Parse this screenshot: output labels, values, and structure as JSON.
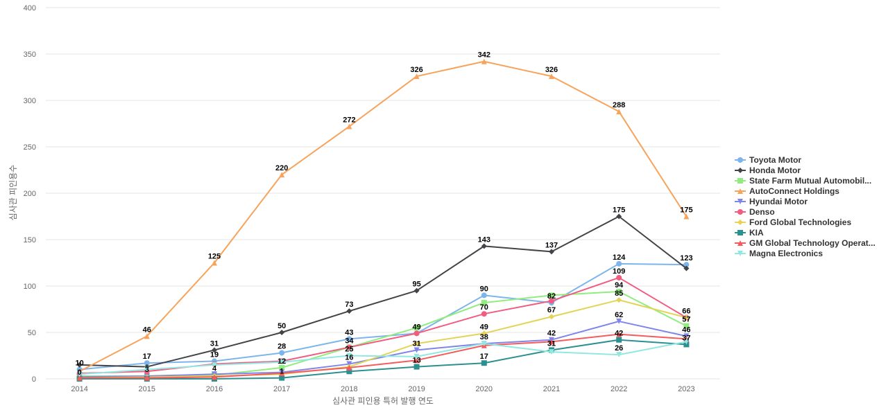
{
  "chart_data": {
    "type": "line",
    "title": "",
    "xlabel": "심사관 피인용 특허 발행 연도",
    "ylabel": "심사관 피인용수",
    "x": [
      "2014",
      "2015",
      "2016",
      "2017",
      "2018",
      "2019",
      "2020",
      "2021",
      "2022",
      "2023"
    ],
    "ylim": [
      0,
      400
    ],
    "yticks": [
      0,
      50,
      100,
      150,
      200,
      250,
      300,
      350,
      400
    ],
    "grid": true,
    "legend_position": "right",
    "series": [
      {
        "name": "Toyota Motor",
        "color": "#7cb5ec",
        "marker": "circle",
        "values": [
          10,
          17,
          19,
          28,
          43,
          49,
          90,
          82,
          124,
          123
        ]
      },
      {
        "name": "Honda Motor",
        "color": "#434348",
        "marker": "diamond",
        "values": [
          15,
          13,
          31,
          50,
          73,
          95,
          143,
          137,
          175,
          119
        ]
      },
      {
        "name": "State Farm Mutual Automobil...",
        "color": "#90ed7d",
        "marker": "square",
        "values": [
          3,
          3,
          4,
          12,
          34,
          55,
          82,
          90,
          94,
          57
        ]
      },
      {
        "name": "AutoConnect Holdings",
        "color": "#f7a35c",
        "marker": "triangle",
        "values": [
          8,
          46,
          125,
          220,
          272,
          326,
          342,
          326,
          288,
          175
        ]
      },
      {
        "name": "Hyundai Motor",
        "color": "#8085e9",
        "marker": "triangle-down",
        "values": [
          2,
          3,
          5,
          7,
          16,
          31,
          38,
          42,
          62,
          46
        ]
      },
      {
        "name": "Denso",
        "color": "#f15c80",
        "marker": "circle",
        "values": [
          6,
          8,
          16,
          19,
          34,
          49,
          70,
          84,
          109,
          66
        ]
      },
      {
        "name": "Ford Global Technologies",
        "color": "#e4d354",
        "marker": "diamond",
        "values": [
          1,
          2,
          3,
          5,
          13,
          38,
          49,
          67,
          85,
          66
        ]
      },
      {
        "name": "KIA",
        "color": "#2b908f",
        "marker": "square",
        "values": [
          0,
          0,
          0,
          1,
          8,
          13,
          17,
          31,
          42,
          37
        ]
      },
      {
        "name": "GM Global Technology Operat...",
        "color": "#f45b5b",
        "marker": "triangle",
        "values": [
          1,
          1,
          2,
          6,
          12,
          20,
          36,
          40,
          48,
          43
        ]
      },
      {
        "name": "Magna Electronics",
        "color": "#91e8e1",
        "marker": "triangle-down",
        "values": [
          5,
          10,
          15,
          18,
          25,
          24,
          38,
          29,
          26,
          40
        ]
      }
    ],
    "data_labels": [
      {
        "x": "2014",
        "text": "10",
        "y": 10
      },
      {
        "x": "2014",
        "text": "0",
        "y": 0
      },
      {
        "x": "2015",
        "text": "46",
        "y": 46
      },
      {
        "x": "2015",
        "text": "17",
        "y": 17
      },
      {
        "x": "2015",
        "text": "3",
        "y": 3
      },
      {
        "x": "2016",
        "text": "125",
        "y": 125
      },
      {
        "x": "2016",
        "text": "31",
        "y": 31
      },
      {
        "x": "2016",
        "text": "19",
        "y": 19
      },
      {
        "x": "2016",
        "text": "4",
        "y": 4
      },
      {
        "x": "2017",
        "text": "220",
        "y": 220
      },
      {
        "x": "2017",
        "text": "50",
        "y": 50
      },
      {
        "x": "2017",
        "text": "28",
        "y": 28
      },
      {
        "x": "2017",
        "text": "12",
        "y": 12
      },
      {
        "x": "2017",
        "text": "1",
        "y": 1
      },
      {
        "x": "2018",
        "text": "272",
        "y": 272
      },
      {
        "x": "2018",
        "text": "73",
        "y": 73
      },
      {
        "x": "2018",
        "text": "43",
        "y": 43
      },
      {
        "x": "2018",
        "text": "34",
        "y": 34
      },
      {
        "x": "2018",
        "text": "25",
        "y": 25
      },
      {
        "x": "2018",
        "text": "16",
        "y": 16
      },
      {
        "x": "2019",
        "text": "326",
        "y": 326
      },
      {
        "x": "2019",
        "text": "95",
        "y": 95
      },
      {
        "x": "2019",
        "text": "49",
        "y": 49
      },
      {
        "x": "2019",
        "text": "31",
        "y": 31
      },
      {
        "x": "2019",
        "text": "13",
        "y": 13
      },
      {
        "x": "2020",
        "text": "342",
        "y": 342
      },
      {
        "x": "2020",
        "text": "143",
        "y": 143
      },
      {
        "x": "2020",
        "text": "90",
        "y": 90
      },
      {
        "x": "2020",
        "text": "70",
        "y": 70
      },
      {
        "x": "2020",
        "text": "49",
        "y": 49
      },
      {
        "x": "2020",
        "text": "38",
        "y": 38
      },
      {
        "x": "2020",
        "text": "17",
        "y": 17
      },
      {
        "x": "2021",
        "text": "326",
        "y": 326
      },
      {
        "x": "2021",
        "text": "137",
        "y": 137
      },
      {
        "x": "2021",
        "text": "82",
        "y": 82
      },
      {
        "x": "2021",
        "text": "67",
        "y": 67
      },
      {
        "x": "2021",
        "text": "42",
        "y": 42
      },
      {
        "x": "2021",
        "text": "31",
        "y": 31
      },
      {
        "x": "2022",
        "text": "288",
        "y": 288
      },
      {
        "x": "2022",
        "text": "175",
        "y": 175
      },
      {
        "x": "2022",
        "text": "124",
        "y": 124
      },
      {
        "x": "2022",
        "text": "109",
        "y": 109
      },
      {
        "x": "2022",
        "text": "94",
        "y": 94
      },
      {
        "x": "2022",
        "text": "85",
        "y": 85
      },
      {
        "x": "2022",
        "text": "62",
        "y": 62
      },
      {
        "x": "2022",
        "text": "42",
        "y": 42
      },
      {
        "x": "2022",
        "text": "26",
        "y": 26
      },
      {
        "x": "2023",
        "text": "175",
        "y": 175
      },
      {
        "x": "2023",
        "text": "123",
        "y": 123
      },
      {
        "x": "2023",
        "text": "66",
        "y": 66
      },
      {
        "x": "2023",
        "text": "57",
        "y": 57
      },
      {
        "x": "2023",
        "text": "46",
        "y": 46
      },
      {
        "x": "2023",
        "text": "37",
        "y": 37
      }
    ]
  }
}
